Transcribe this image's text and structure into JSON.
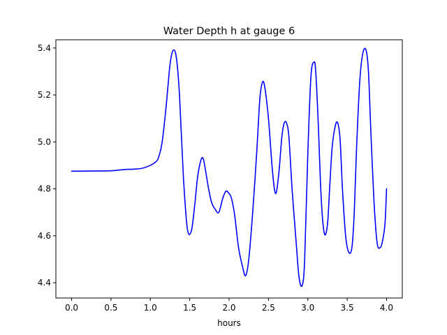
{
  "chart_data": {
    "type": "line",
    "title": "Water Depth h at gauge 6",
    "xlabel": "hours",
    "ylabel": "",
    "xlim": [
      -0.2,
      4.2
    ],
    "ylim": [
      4.335,
      5.435
    ],
    "xticks": [
      0.0,
      0.5,
      1.0,
      1.5,
      2.0,
      2.5,
      3.0,
      3.5,
      4.0
    ],
    "xtick_labels": [
      "0.0",
      "0.5",
      "1.0",
      "1.5",
      "2.0",
      "2.5",
      "3.0",
      "3.5",
      "4.0"
    ],
    "yticks": [
      4.4,
      4.6,
      4.8,
      5.0,
      5.2,
      5.4
    ],
    "ytick_labels": [
      "4.4",
      "4.6",
      "4.8",
      "5.0",
      "5.2",
      "5.4"
    ],
    "grid": false,
    "legend": "none",
    "color": "#0000ff",
    "series": [
      {
        "x": [
          0.0,
          0.25,
          0.5,
          0.6,
          0.7,
          0.8,
          0.9,
          1.0,
          1.05,
          1.1,
          1.15,
          1.2,
          1.25,
          1.29,
          1.33,
          1.37,
          1.42,
          1.47,
          1.52,
          1.56,
          1.6,
          1.64,
          1.67,
          1.7,
          1.74,
          1.78,
          1.83,
          1.87,
          1.92,
          1.96,
          2.0,
          2.03,
          2.07,
          2.12,
          2.17,
          2.21,
          2.25,
          2.3,
          2.35,
          2.39,
          2.42,
          2.45,
          2.5,
          2.55,
          2.59,
          2.63,
          2.67,
          2.7,
          2.73,
          2.76,
          2.8,
          2.85,
          2.89,
          2.93,
          2.96,
          3.0,
          3.04,
          3.08,
          3.1,
          3.13,
          3.17,
          3.21,
          3.25,
          3.28,
          3.31,
          3.35,
          3.38,
          3.41,
          3.44,
          3.48,
          3.52,
          3.56,
          3.59,
          3.62,
          3.66,
          3.7,
          3.74,
          3.77,
          3.8,
          3.84,
          3.88,
          3.92,
          3.95,
          3.98,
          4.0
        ],
        "y": [
          4.875,
          4.876,
          4.877,
          4.88,
          4.883,
          4.884,
          4.888,
          4.9,
          4.91,
          4.93,
          5.0,
          5.15,
          5.33,
          5.39,
          5.36,
          5.2,
          4.85,
          4.63,
          4.62,
          4.72,
          4.85,
          4.92,
          4.93,
          4.88,
          4.8,
          4.74,
          4.71,
          4.7,
          4.76,
          4.79,
          4.78,
          4.76,
          4.69,
          4.55,
          4.47,
          4.43,
          4.5,
          4.7,
          4.95,
          5.18,
          5.25,
          5.24,
          5.1,
          4.88,
          4.78,
          4.86,
          5.02,
          5.08,
          5.08,
          5.02,
          4.8,
          4.58,
          4.42,
          4.39,
          4.5,
          4.95,
          5.28,
          5.34,
          5.3,
          5.1,
          4.76,
          4.61,
          4.65,
          4.82,
          4.98,
          5.07,
          5.08,
          5.01,
          4.8,
          4.6,
          4.53,
          4.55,
          4.7,
          4.98,
          5.26,
          5.38,
          5.39,
          5.3,
          5.05,
          4.75,
          4.57,
          4.55,
          4.58,
          4.65,
          4.8
        ]
      }
    ]
  }
}
